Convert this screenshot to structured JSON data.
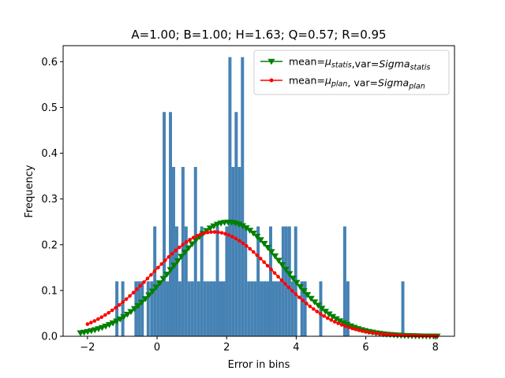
{
  "chart_data": {
    "type": "histogram+line",
    "title": "A=1.00; B=1.00; H=1.63; Q=0.57; R=0.95",
    "xlabel": "Error in bins",
    "ylabel": "Frequency",
    "xlim": [
      -2.7,
      8.55
    ],
    "ylim": [
      0,
      0.635
    ],
    "xticks": [
      -2,
      0,
      2,
      4,
      6,
      8
    ],
    "yticks": [
      0.0,
      0.1,
      0.2,
      0.3,
      0.4,
      0.5,
      0.6
    ],
    "xtick_labels": [
      "−2",
      "0",
      "2",
      "4",
      "6",
      "8"
    ],
    "ytick_labels": [
      "0.0",
      "0.1",
      "0.2",
      "0.3",
      "0.4",
      "0.5",
      "0.6"
    ],
    "histogram": {
      "color": "#4682b4",
      "bin_width": 0.09,
      "bins": [
        {
          "x": -1.2,
          "h": 0.12
        },
        {
          "x": -1.03,
          "h": 0.12
        },
        {
          "x": -0.65,
          "h": 0.12
        },
        {
          "x": -0.56,
          "h": 0.12
        },
        {
          "x": -0.47,
          "h": 0.12
        },
        {
          "x": -0.3,
          "h": 0.12
        },
        {
          "x": -0.2,
          "h": 0.12
        },
        {
          "x": -0.11,
          "h": 0.24
        },
        {
          "x": -0.02,
          "h": 0.12
        },
        {
          "x": 0.07,
          "h": 0.12
        },
        {
          "x": 0.16,
          "h": 0.49
        },
        {
          "x": 0.25,
          "h": 0.12
        },
        {
          "x": 0.34,
          "h": 0.49
        },
        {
          "x": 0.43,
          "h": 0.37
        },
        {
          "x": 0.52,
          "h": 0.24
        },
        {
          "x": 0.61,
          "h": 0.12
        },
        {
          "x": 0.7,
          "h": 0.37
        },
        {
          "x": 0.79,
          "h": 0.24
        },
        {
          "x": 0.88,
          "h": 0.12
        },
        {
          "x": 0.97,
          "h": 0.12
        },
        {
          "x": 1.06,
          "h": 0.37
        },
        {
          "x": 1.15,
          "h": 0.12
        },
        {
          "x": 1.24,
          "h": 0.24
        },
        {
          "x": 1.33,
          "h": 0.12
        },
        {
          "x": 1.42,
          "h": 0.12
        },
        {
          "x": 1.51,
          "h": 0.12
        },
        {
          "x": 1.6,
          "h": 0.12
        },
        {
          "x": 1.69,
          "h": 0.24
        },
        {
          "x": 1.78,
          "h": 0.12
        },
        {
          "x": 1.87,
          "h": 0.12
        },
        {
          "x": 1.96,
          "h": 0.24
        },
        {
          "x": 2.05,
          "h": 0.61
        },
        {
          "x": 2.14,
          "h": 0.37
        },
        {
          "x": 2.23,
          "h": 0.49
        },
        {
          "x": 2.32,
          "h": 0.37
        },
        {
          "x": 2.41,
          "h": 0.61
        },
        {
          "x": 2.5,
          "h": 0.24
        },
        {
          "x": 2.59,
          "h": 0.12
        },
        {
          "x": 2.68,
          "h": 0.12
        },
        {
          "x": 2.77,
          "h": 0.12
        },
        {
          "x": 2.86,
          "h": 0.24
        },
        {
          "x": 2.95,
          "h": 0.12
        },
        {
          "x": 3.04,
          "h": 0.12
        },
        {
          "x": 3.13,
          "h": 0.12
        },
        {
          "x": 3.22,
          "h": 0.24
        },
        {
          "x": 3.31,
          "h": 0.12
        },
        {
          "x": 3.4,
          "h": 0.12
        },
        {
          "x": 3.49,
          "h": 0.12
        },
        {
          "x": 3.58,
          "h": 0.24
        },
        {
          "x": 3.67,
          "h": 0.24
        },
        {
          "x": 3.76,
          "h": 0.24
        },
        {
          "x": 3.85,
          "h": 0.12
        },
        {
          "x": 3.94,
          "h": 0.24
        },
        {
          "x": 4.12,
          "h": 0.12
        },
        {
          "x": 4.21,
          "h": 0.12
        },
        {
          "x": 4.66,
          "h": 0.12
        },
        {
          "x": 5.35,
          "h": 0.24
        },
        {
          "x": 5.44,
          "h": 0.12
        },
        {
          "x": 7.02,
          "h": 0.12
        }
      ]
    },
    "series": [
      {
        "label_parts": [
          "mean=",
          "μ",
          "statis",
          ",var=",
          "Sigma",
          "statis"
        ],
        "color": "#008000",
        "marker": "triangle-down",
        "mean": 2.05,
        "sigma": 1.6,
        "x_range": [
          -2.2,
          8.05
        ],
        "n_points": 100
      },
      {
        "label_parts": [
          "mean=",
          "μ",
          "plan",
          ", var=",
          "Sigma",
          "plan"
        ],
        "color": "#ff0000",
        "marker": "circle",
        "mean": 1.63,
        "sigma": 1.75,
        "x_range": [
          -2.0,
          8.05
        ],
        "n_points": 100
      }
    ],
    "legend_position": "upper right",
    "grid": false
  }
}
